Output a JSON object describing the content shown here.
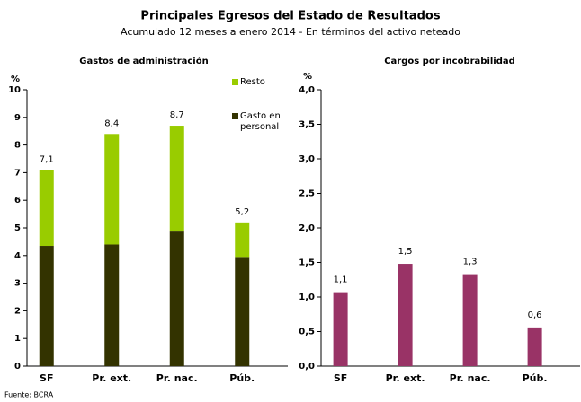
{
  "title": "Principales Egresos del Estado de Resultados",
  "subtitle": "Acumulado 12 meses a enero 2014 - En términos del activo neteado",
  "source": "Fuente: BCRA",
  "chart_data": [
    {
      "type": "stacked-bar",
      "title": "Gastos de administración",
      "y_label": "%",
      "categories": [
        "SF",
        "Pr. ext.",
        "Pr. nac.",
        "Púb."
      ],
      "series": [
        {
          "name": "Gasto en personal",
          "color": "#333300",
          "values": [
            4.35,
            4.4,
            4.9,
            3.95
          ]
        },
        {
          "name": "Resto",
          "color": "#99cc00",
          "values": [
            2.75,
            4.0,
            3.8,
            1.25
          ]
        }
      ],
      "total_labels": [
        "7,1",
        "8,4",
        "8,7",
        "5,2"
      ],
      "ylim": [
        0,
        10
      ],
      "yticks": [
        0,
        1,
        2,
        3,
        4,
        5,
        6,
        7,
        8,
        9,
        10
      ],
      "grid": false,
      "legend": "right"
    },
    {
      "type": "bar",
      "title": "Cargos por incobrabilidad",
      "y_label": "%",
      "categories": [
        "SF",
        "Pr. ext.",
        "Pr. nac.",
        "Púb."
      ],
      "values": [
        1.07,
        1.48,
        1.33,
        0.56
      ],
      "value_labels": [
        "1,1",
        "1,5",
        "1,3",
        "0,6"
      ],
      "color": "#993366",
      "ylim": [
        0,
        4
      ],
      "yticks": [
        {
          "value": 0,
          "label": "0,0"
        },
        {
          "value": 0.5,
          "label": "0,5"
        },
        {
          "value": 1,
          "label": "1,0"
        },
        {
          "value": 1.5,
          "label": "1,5"
        },
        {
          "value": 2,
          "label": "2,0"
        },
        {
          "value": 2.5,
          "label": "2,5"
        },
        {
          "value": 3,
          "label": "3,0"
        },
        {
          "value": 3.5,
          "label": "3,5"
        },
        {
          "value": 4,
          "label": "4,0"
        }
      ],
      "grid": false
    }
  ]
}
